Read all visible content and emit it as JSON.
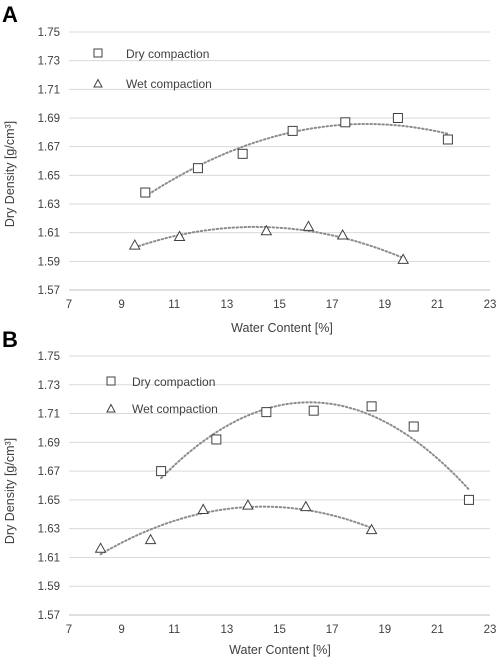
{
  "chart_data": [
    {
      "panel": "A",
      "type": "scatter",
      "title": "",
      "xlabel": "Water Content [%]",
      "ylabel": "Dry Density [g/cm³]",
      "xlim": [
        7,
        23
      ],
      "ylim": [
        1.57,
        1.75
      ],
      "xticks": [
        "7",
        "9",
        "11",
        "13",
        "15",
        "17",
        "19",
        "21",
        "23"
      ],
      "yticks": [
        "1.57",
        "1.59",
        "1.61",
        "1.63",
        "1.65",
        "1.67",
        "1.69",
        "1.71",
        "1.73",
        "1.75"
      ],
      "grid": "horizontal",
      "legend_position": "top-left",
      "series": [
        {
          "name": "Dry compaction",
          "marker": "square",
          "x": [
            9.9,
            11.9,
            13.6,
            15.5,
            17.5,
            19.5,
            21.4
          ],
          "y": [
            1.638,
            1.655,
            1.665,
            1.681,
            1.687,
            1.69,
            1.675
          ],
          "trendline": "polynomial"
        },
        {
          "name": "Wet compaction",
          "marker": "triangle",
          "x": [
            9.5,
            11.2,
            14.5,
            16.1,
            17.4,
            19.7
          ],
          "y": [
            1.601,
            1.607,
            1.611,
            1.614,
            1.608,
            1.591
          ],
          "trendline": "polynomial"
        }
      ]
    },
    {
      "panel": "B",
      "type": "scatter",
      "title": "",
      "xlabel": "Water Content [%]",
      "ylabel": "Dry Density [g/cm³]",
      "xlim": [
        7,
        23
      ],
      "ylim": [
        1.57,
        1.75
      ],
      "xticks": [
        "7",
        "9",
        "11",
        "13",
        "15",
        "17",
        "19",
        "21",
        "23"
      ],
      "yticks": [
        "1.57",
        "1.59",
        "1.61",
        "1.63",
        "1.65",
        "1.67",
        "1.69",
        "1.71",
        "1.73",
        "1.75"
      ],
      "grid": "horizontal",
      "legend_position": "top-left",
      "series": [
        {
          "name": "Dry compaction",
          "marker": "square",
          "x": [
            10.5,
            12.6,
            14.5,
            16.3,
            18.5,
            20.1,
            22.2
          ],
          "y": [
            1.67,
            1.692,
            1.711,
            1.712,
            1.715,
            1.701,
            1.65
          ],
          "trendline": "polynomial"
        },
        {
          "name": "Wet compaction",
          "marker": "triangle",
          "x": [
            8.2,
            10.1,
            12.1,
            13.8,
            16.0,
            18.5
          ],
          "y": [
            1.616,
            1.622,
            1.643,
            1.646,
            1.645,
            1.629
          ],
          "trendline": "polynomial"
        }
      ]
    }
  ]
}
